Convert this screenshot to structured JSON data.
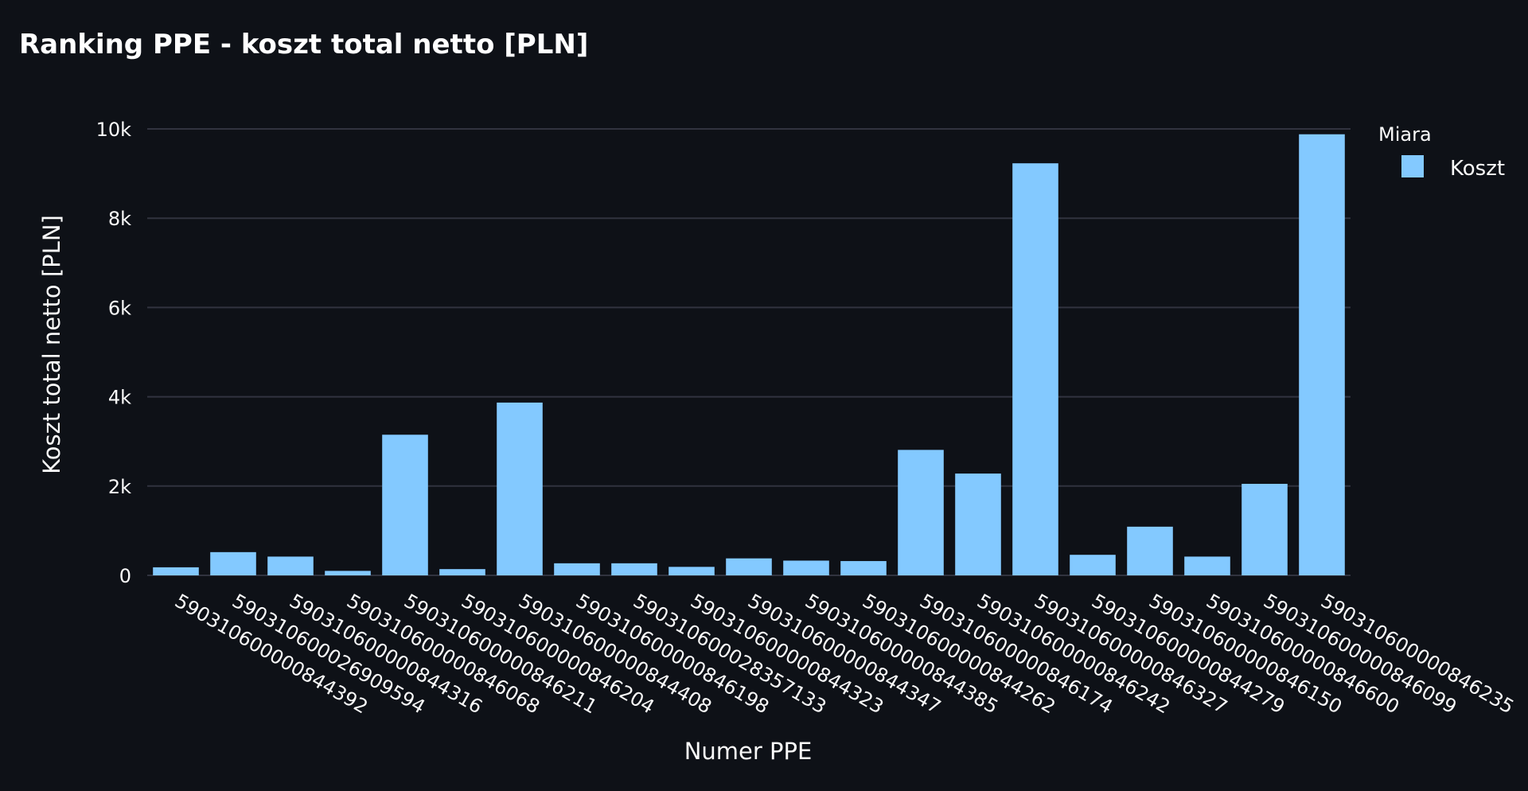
{
  "chart_data": {
    "type": "bar",
    "title": "Ranking PPE - koszt total netto [PLN]",
    "xlabel": "Numer PPE",
    "ylabel": "Koszt total netto [PLN]",
    "ylim": [
      0,
      10000
    ],
    "yticks": [
      {
        "value": 0,
        "label": "0"
      },
      {
        "value": 2000,
        "label": "2k"
      },
      {
        "value": 4000,
        "label": "4k"
      },
      {
        "value": 6000,
        "label": "6k"
      },
      {
        "value": 8000,
        "label": "8k"
      },
      {
        "value": 10000,
        "label": "10k"
      }
    ],
    "grid": true,
    "legend": {
      "title": "Miara",
      "position": "top-right",
      "entries": [
        {
          "name": "Koszt",
          "color": "#83c9ff"
        }
      ]
    },
    "color": "#83c9ff",
    "background": "#0e1117",
    "categories": [
      "590310600000844392",
      "590310600026909594",
      "590310600000844316",
      "590310600000846068",
      "590310600000846211",
      "590310600000846204",
      "590310600000844408",
      "590310600000846198",
      "590310600028357133",
      "590310600000844323",
      "590310600000844347",
      "590310600000844385",
      "590310600000844262",
      "590310600000846174",
      "590310600000846242",
      "590310600000846327",
      "590310600000844279",
      "590310600000846150",
      "590310600000846600",
      "590310600000846099",
      "590310600000846235"
    ],
    "series": [
      {
        "name": "Koszt",
        "values": [
          180,
          520,
          420,
          100,
          3150,
          140,
          3870,
          270,
          270,
          190,
          380,
          330,
          320,
          2810,
          2280,
          9230,
          460,
          1090,
          420,
          2050,
          9880
        ]
      }
    ]
  }
}
